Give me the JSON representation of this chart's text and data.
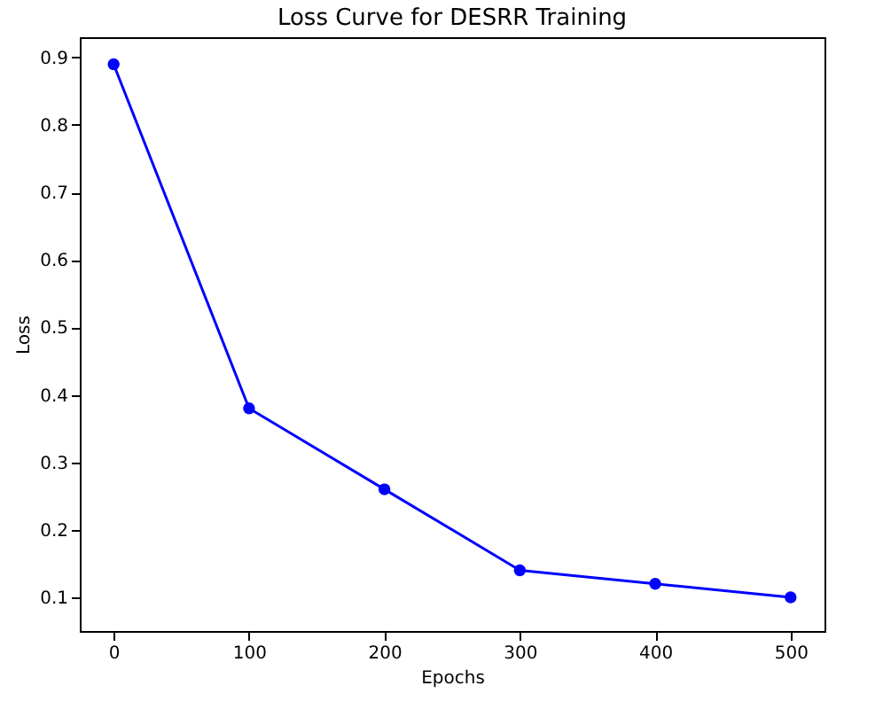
{
  "chart_data": {
    "type": "line",
    "title": "Loss Curve for DESRR Training",
    "xlabel": "Epochs",
    "ylabel": "Loss",
    "x": [
      0,
      100,
      200,
      300,
      400,
      500
    ],
    "series": [
      {
        "color": "#0000ff",
        "values": [
          0.89,
          0.38,
          0.26,
          0.14,
          0.12,
          0.1
        ]
      }
    ],
    "xlim": [
      -25,
      525
    ],
    "xticks": [
      0,
      100,
      200,
      300,
      400,
      500
    ],
    "ylim": [
      0.05,
      0.93
    ],
    "yticks": [
      0.1,
      0.2,
      0.3,
      0.4,
      0.5,
      0.6,
      0.7,
      0.8,
      0.9
    ],
    "marker": "circle",
    "line_style": "solid",
    "grid": false
  }
}
